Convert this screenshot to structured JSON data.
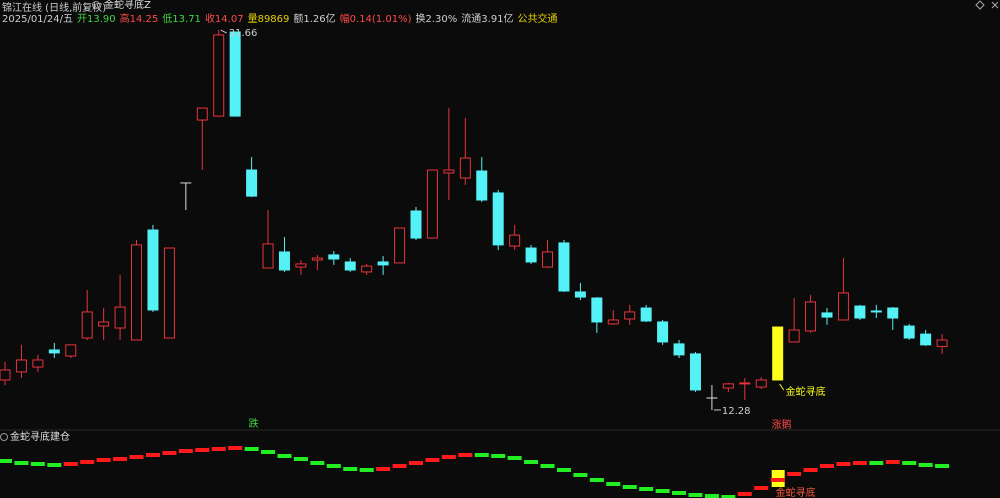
{
  "header": {
    "stock": "锦江在线 (日线,前复权)",
    "indicator": "金蛇寻底Z",
    "fields": [
      {
        "text": "2025/01/24/五",
        "color": "#cfcfcf"
      },
      {
        "text": "开13.90",
        "color": "#3ed43e"
      },
      {
        "text": "高14.25",
        "color": "#ff4a4a"
      },
      {
        "text": "低13.71",
        "color": "#3ed43e"
      },
      {
        "text": "收14.07",
        "color": "#ff4a4a"
      },
      {
        "text": "量89869",
        "color": "#e8d000"
      },
      {
        "text": "额1.26亿",
        "color": "#cfcfcf"
      },
      {
        "text": "幅0.14(1.01%)",
        "color": "#ff4a4a"
      },
      {
        "text": "换2.30%",
        "color": "#cfcfcf"
      },
      {
        "text": "流通3.91亿",
        "color": "#cfcfcf"
      },
      {
        "text": "公共交通",
        "color": "#e8d000"
      }
    ]
  },
  "chart_data": {
    "type": "candlestick",
    "open": [
      13.81,
      14.22,
      14.47,
      15.34,
      15.03,
      15.95,
      16.56,
      16.46,
      15.85,
      21.46,
      15.95,
      23.86,
      27.07,
      27.27,
      31.56,
      24.52,
      19.52,
      20.34,
      19.57,
      19.93,
      20.19,
      19.83,
      19.32,
      19.83,
      19.78,
      22.43,
      21.05,
      24.37,
      24.11,
      24.47,
      23.35,
      20.64,
      20.54,
      19.57,
      20.8,
      18.3,
      17.99,
      16.67,
      16.92,
      17.48,
      16.77,
      15.65,
      15.14,
      12.89,
      13.4,
      13.61,
      13.45,
      13.81,
      15.75,
      16.31,
      17.23,
      16.87,
      17.58,
      17.33,
      17.48,
      16.56,
      16.15,
      15.52
    ],
    "high": [
      14.73,
      15.6,
      15.09,
      15.7,
      15.6,
      18.4,
      17.48,
      19.17,
      20.95,
      21.72,
      20.54,
      23.86,
      27.68,
      31.66,
      31.56,
      25.18,
      22.48,
      21.1,
      19.93,
      20.19,
      20.39,
      20.03,
      19.73,
      20.13,
      21.56,
      22.63,
      24.52,
      27.68,
      27.17,
      25.18,
      23.5,
      21.72,
      20.7,
      20.95,
      20.95,
      18.76,
      18.04,
      17.38,
      17.64,
      17.64,
      16.87,
      15.85,
      15.24,
      13.55,
      13.66,
      13.91,
      13.96,
      16.51,
      17.99,
      18.15,
      17.48,
      20.03,
      17.64,
      17.64,
      17.53,
      16.67,
      16.36,
      16.15
    ],
    "low": [
      13.55,
      13.91,
      14.22,
      14.93,
      14.93,
      15.85,
      15.85,
      15.85,
      15.85,
      17.28,
      15.95,
      22.48,
      24.52,
      27.27,
      27.27,
      23.14,
      19.52,
      19.32,
      19.17,
      19.42,
      19.68,
      19.32,
      19.17,
      19.17,
      19.78,
      20.95,
      21.05,
      22.99,
      23.76,
      22.89,
      20.44,
      20.44,
      19.73,
      19.52,
      18.3,
      17.89,
      16.21,
      16.62,
      16.62,
      16.77,
      15.6,
      14.93,
      13.2,
      12.28,
      13.2,
      12.79,
      13.35,
      13.81,
      15.75,
      16.21,
      16.62,
      16.87,
      16.87,
      16.97,
      16.36,
      15.85,
      15.55,
      15.14
    ],
    "close": [
      14.32,
      14.83,
      14.83,
      15.19,
      15.6,
      17.28,
      16.77,
      17.53,
      20.7,
      17.38,
      20.54,
      23.86,
      27.68,
      31.41,
      27.27,
      23.19,
      20.75,
      19.42,
      19.73,
      20.03,
      19.98,
      19.42,
      19.62,
      19.68,
      21.56,
      21.05,
      24.52,
      24.52,
      25.13,
      22.99,
      20.7,
      21.2,
      19.83,
      20.34,
      18.35,
      18.04,
      16.77,
      16.87,
      17.28,
      16.82,
      15.75,
      15.09,
      13.3,
      12.89,
      13.61,
      13.66,
      13.81,
      16.51,
      16.36,
      17.79,
      17.02,
      18.25,
      16.97,
      17.28,
      16.97,
      15.95,
      15.6,
      15.85
    ],
    "ylim": [
      11.36,
      32.07
    ],
    "up_color": "#e8343c",
    "down_color": "#54f2f6",
    "flat_color": "#dddddd",
    "signal_color": "#ffff1a",
    "annotations": {
      "fall": "跌",
      "rise": "涨鹅",
      "signal": "金蛇寻底"
    },
    "indicator": {
      "title": "金蛇寻底建仓",
      "signal": "金蛇寻底",
      "values": [
        37,
        35,
        34,
        33,
        34,
        36,
        38,
        39,
        41,
        43,
        45,
        47,
        48,
        49,
        50,
        49,
        46,
        42,
        39,
        35,
        32,
        29,
        28,
        29,
        32,
        35,
        38,
        41,
        43,
        43,
        42,
        40,
        36,
        32,
        28,
        23,
        18,
        14,
        11,
        9,
        7,
        5,
        3,
        2,
        1,
        4,
        10,
        18,
        24,
        28,
        32,
        34,
        35,
        35,
        36,
        35,
        33,
        32
      ],
      "ylim": [
        0,
        60
      ],
      "up_color": "#ff1a1a",
      "down_color": "#22ee22"
    }
  }
}
